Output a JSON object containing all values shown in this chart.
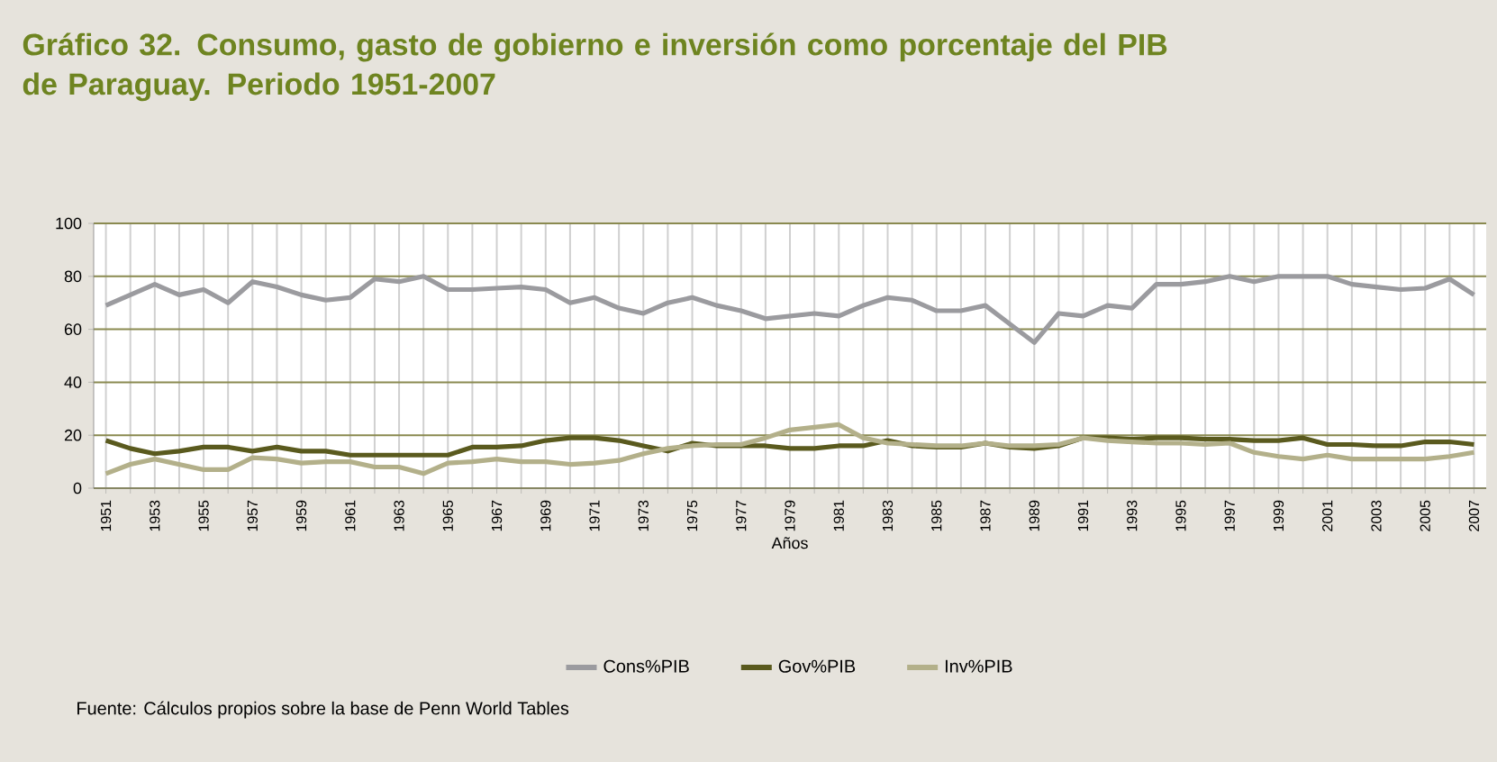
{
  "chart_data": {
    "type": "line",
    "title": "Gráfico 32. Consumo, gasto de gobierno e inversión como porcentaje del PIB de Paraguay. Periodo 1951-2007",
    "xlabel": "Años",
    "annotations": [
      "Fuente: Cálculos propios sobre la base de Penn World Tables"
    ],
    "categories": [
      "1951",
      null,
      "1953",
      null,
      "1955",
      null,
      "1957",
      null,
      "1959",
      null,
      "1961",
      null,
      "1963",
      null,
      "1965",
      null,
      "1967",
      null,
      "1969",
      null,
      "1971",
      null,
      "1973",
      null,
      "1975",
      null,
      "1977",
      null,
      "1979",
      null,
      "1981",
      null,
      "1983",
      null,
      "1985",
      null,
      "1987",
      null,
      "1989",
      null,
      "1991",
      null,
      "1993",
      null,
      "1995",
      null,
      "1997",
      null,
      "1999",
      null,
      "2001",
      null,
      "2003",
      null,
      "2005",
      null,
      "2007"
    ],
    "series": [
      {
        "name": "Cons%PIB",
        "color": "#9b9b9f",
        "values": [
          69,
          73,
          77,
          73,
          75,
          70,
          78,
          76,
          73,
          71,
          72,
          79,
          78,
          80,
          75,
          75,
          75.5,
          76,
          75,
          70,
          72,
          68,
          66,
          70,
          72,
          69,
          67,
          64,
          65,
          66,
          65,
          69,
          72,
          71,
          67,
          67,
          69,
          62,
          55,
          66,
          65,
          69,
          68,
          77,
          77,
          78,
          80,
          78,
          80,
          80,
          80,
          77,
          76,
          75,
          75.5,
          79,
          73
        ]
      },
      {
        "name": "Gov%PIB",
        "color": "#5a5a1e",
        "values": [
          18,
          15,
          13,
          14,
          15.5,
          15.5,
          14,
          15.5,
          14,
          14,
          12.5,
          12.5,
          12.5,
          12.5,
          12.5,
          15.5,
          15.5,
          16,
          18,
          19,
          19,
          18,
          16,
          14,
          17,
          16,
          16,
          16,
          15,
          15,
          16,
          16,
          18,
          16,
          15.5,
          15.5,
          17,
          15.5,
          15,
          16,
          19,
          19,
          18.5,
          19,
          19,
          18.5,
          18.5,
          18,
          18,
          19,
          16.5,
          16.5,
          16,
          16,
          17.5,
          17.5,
          16.5
        ]
      },
      {
        "name": "Inv%PIB",
        "color": "#b3b08a",
        "values": [
          5.5,
          9,
          11,
          9,
          7,
          7,
          11.5,
          11,
          9.5,
          10,
          10,
          8,
          8,
          5.5,
          9.5,
          10,
          11,
          10,
          10,
          9,
          9.5,
          10.5,
          13,
          15,
          16,
          16.5,
          16.5,
          19,
          22,
          23,
          24,
          19,
          17,
          16.5,
          16,
          16,
          17,
          16,
          16,
          16.5,
          19,
          18,
          17.5,
          17,
          17,
          16.5,
          17,
          13.5,
          12,
          11,
          12.5,
          11,
          11,
          11,
          11,
          12,
          13.5
        ]
      }
    ],
    "ylim": [
      0,
      100
    ],
    "yticks": [
      0,
      20,
      40,
      60,
      80,
      100
    ],
    "grid": true,
    "legend": "bottom",
    "marker": "none",
    "line_style": "solid"
  }
}
